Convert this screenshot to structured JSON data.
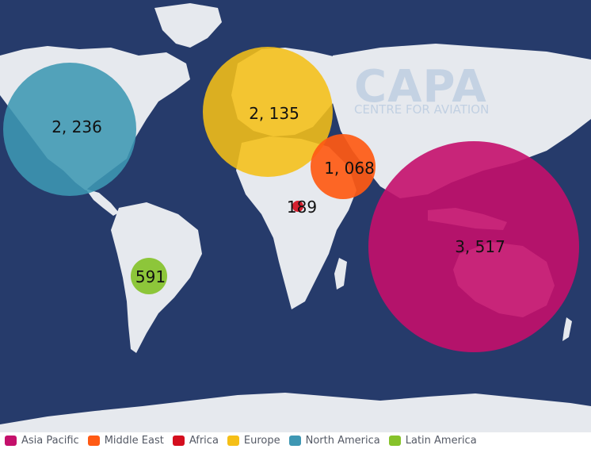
{
  "watermark": {
    "title": "CAPA",
    "subtitle": "CENTRE FOR AVIATION"
  },
  "chart_data": {
    "type": "bubble-map",
    "series": [
      {
        "name": "Asia Pacific",
        "value": 3517,
        "label": "3, 517",
        "color": "#c4106b"
      },
      {
        "name": "Middle East",
        "value": 1068,
        "label": "1, 068",
        "color": "#ff5a14"
      },
      {
        "name": "Africa",
        "value": 189,
        "label": "189",
        "color": "#d40e1e"
      },
      {
        "name": "Europe",
        "value": 2135,
        "label": "2, 135",
        "color": "#f5bf17"
      },
      {
        "name": "North America",
        "value": 2236,
        "label": "2, 236",
        "color": "#3e97b3"
      },
      {
        "name": "Latin America",
        "value": 591,
        "label": "591",
        "color": "#86c22a"
      }
    ]
  },
  "legend": {
    "items": [
      {
        "label": "Asia Pacific",
        "color": "#c4106b"
      },
      {
        "label": "Middle East",
        "color": "#ff5a14"
      },
      {
        "label": "Africa",
        "color": "#d40e1e"
      },
      {
        "label": "Europe",
        "color": "#f5bf17"
      },
      {
        "label": "North America",
        "color": "#3e97b3"
      },
      {
        "label": "Latin America",
        "color": "#86c22a"
      }
    ]
  }
}
